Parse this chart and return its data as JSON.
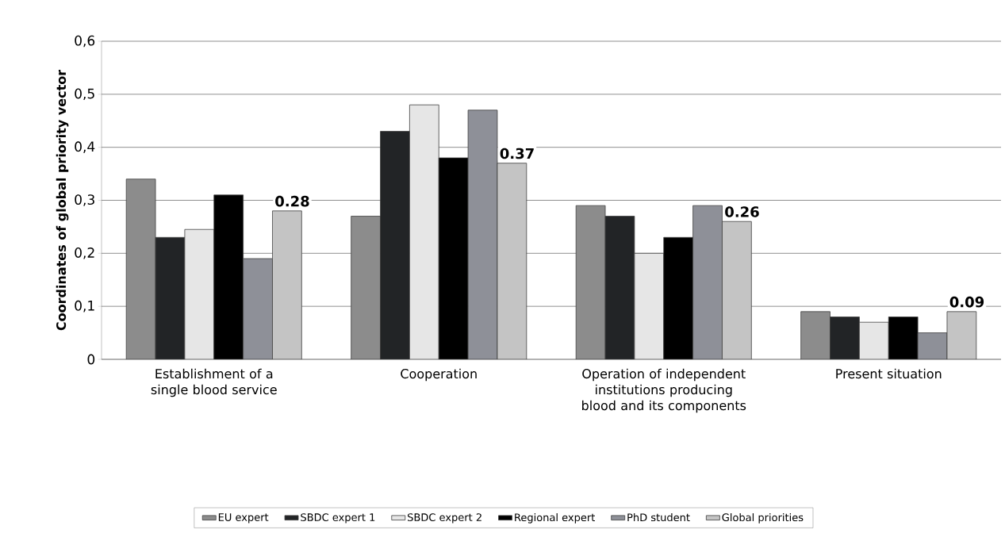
{
  "chart_data": {
    "type": "bar",
    "ylabel": "Coordinates of global priority vector",
    "categories": [
      "Establishment of a single blood service",
      "Cooperation",
      "Operation of independent institutions producing blood and its components",
      "Present situation"
    ],
    "series": [
      {
        "name": "EU expert",
        "color": "#8c8c8c",
        "values": [
          0.34,
          0.27,
          0.29,
          0.09
        ]
      },
      {
        "name": "SBDC expert 1",
        "color": "#222426",
        "values": [
          0.23,
          0.43,
          0.27,
          0.08
        ]
      },
      {
        "name": "SBDC expert 2",
        "color": "#e6e6e6",
        "values": [
          0.245,
          0.48,
          0.2,
          0.07
        ]
      },
      {
        "name": "Regional expert",
        "color": "#000000",
        "values": [
          0.31,
          0.38,
          0.23,
          0.08
        ]
      },
      {
        "name": "PhD student",
        "color": "#8e9098",
        "values": [
          0.19,
          0.47,
          0.29,
          0.05
        ]
      },
      {
        "name": "Global priorities",
        "color": "#c4c4c4",
        "values": [
          0.28,
          0.37,
          0.26,
          0.09
        ],
        "value_labels": [
          "0.28",
          "0.37",
          "0.26",
          "0.09"
        ]
      }
    ],
    "ylim": [
      0,
      0.6
    ],
    "yticks": [
      0,
      {
        "value": 0.1,
        "label": "0,1"
      },
      {
        "value": 0.2,
        "label": "0,2"
      },
      {
        "value": 0.3,
        "label": "0,3"
      },
      {
        "value": 0.4,
        "label": "0,4"
      },
      {
        "value": 0.5,
        "label": "0,5"
      },
      {
        "value": 0.6,
        "label": "0,6"
      }
    ],
    "grid": "y",
    "legend": "bottom"
  }
}
